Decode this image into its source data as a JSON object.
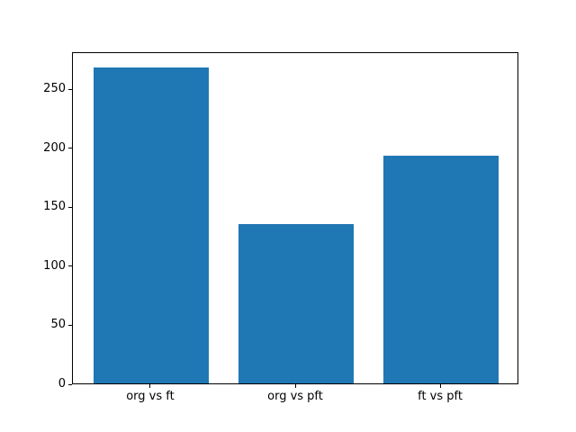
{
  "figure": {
    "background": "#ffffff"
  },
  "chart_data": {
    "type": "bar",
    "title": "",
    "xlabel": "",
    "ylabel": "",
    "categories": [
      "org vs ft",
      "org vs pft",
      "ft vs pft"
    ],
    "values": [
      268,
      135,
      193
    ],
    "yticks": [
      0,
      50,
      100,
      150,
      200,
      250
    ],
    "ylim": [
      0,
      281.4
    ],
    "bar_color": "#1f77b4",
    "grid": false,
    "legend": "none"
  }
}
